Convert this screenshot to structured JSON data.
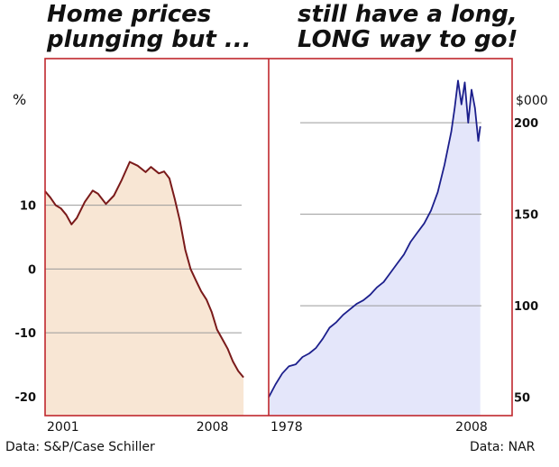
{
  "titles": {
    "left_line1": "Home prices",
    "left_line2": "plunging but ...",
    "right_line1": "still have a long,",
    "right_line2": "LONG way to go!"
  },
  "footer": {
    "left_source": "Data: S&P/Case Schiller",
    "right_source": "Data: NAR"
  },
  "colors": {
    "border": "#c0272d",
    "left_line": "#7a1a1a",
    "left_fill": "#f8e6d4",
    "right_line": "#1c1f8c",
    "right_fill": "#e4e6fa",
    "grid": "#9a9a9a"
  },
  "chart_data": [
    {
      "type": "area",
      "title": "Home prices plunging but ...",
      "source": "Data: S&P/Case Schiller",
      "ylabel": "%",
      "ylim": [
        -23,
        33
      ],
      "xlim": [
        2001.0,
        2008.6
      ],
      "yticks": [
        10,
        0,
        -10,
        -20
      ],
      "ytick_labels": [
        "10",
        "0",
        "-10",
        "-20"
      ],
      "xticks": [
        2001,
        2008
      ],
      "xtick_labels": [
        "2001",
        "2008"
      ],
      "gridlines": [
        10,
        0,
        -10
      ],
      "x": [
        2001.0,
        2001.2,
        2001.4,
        2001.6,
        2001.8,
        2002.0,
        2002.2,
        2002.5,
        2002.8,
        2003.0,
        2003.3,
        2003.6,
        2003.9,
        2004.2,
        2004.5,
        2004.8,
        2005.0,
        2005.3,
        2005.5,
        2005.7,
        2005.9,
        2006.1,
        2006.3,
        2006.5,
        2006.7,
        2006.9,
        2007.1,
        2007.3,
        2007.5,
        2007.7,
        2007.9,
        2008.1,
        2008.3,
        2008.5
      ],
      "values": [
        12.2,
        11.2,
        10.0,
        9.5,
        8.5,
        7.0,
        8.0,
        10.5,
        12.3,
        11.8,
        10.2,
        11.5,
        14.0,
        16.8,
        16.2,
        15.2,
        16.0,
        15.0,
        15.3,
        14.2,
        11.0,
        7.5,
        3.0,
        0.0,
        -1.8,
        -3.5,
        -4.8,
        -6.8,
        -9.5,
        -11.0,
        -12.5,
        -14.5,
        -16.0,
        -17.0
      ]
    },
    {
      "type": "area",
      "title": "still have a long, LONG way to go!",
      "source": "Data: NAR",
      "ylabel": "$000",
      "ylim": [
        40,
        235
      ],
      "xlim": [
        1978,
        2014
      ],
      "yticks": [
        200,
        150,
        100,
        50
      ],
      "ytick_labels": [
        "200",
        "150",
        "100",
        "50"
      ],
      "xticks": [
        1978,
        2008
      ],
      "xtick_labels": [
        "1978",
        "2008"
      ],
      "gridlines": [
        200,
        150,
        100
      ],
      "x": [
        1978.0,
        1979.0,
        1980.0,
        1981.0,
        1982.0,
        1983.0,
        1984.0,
        1985.0,
        1986.0,
        1987.0,
        1988.0,
        1989.0,
        1990.0,
        1991.0,
        1992.0,
        1993.0,
        1994.0,
        1995.0,
        1996.0,
        1997.0,
        1998.0,
        1999.0,
        2000.0,
        2001.0,
        2002.0,
        2003.0,
        2004.0,
        2005.0,
        2005.5,
        2006.0,
        2006.5,
        2007.0,
        2007.5,
        2008.0,
        2008.5,
        2009.0,
        2009.3
      ],
      "values": [
        50,
        57,
        63,
        67,
        68,
        72,
        74,
        77,
        82,
        88,
        91,
        95,
        98,
        101,
        103,
        106,
        110,
        113,
        118,
        123,
        128,
        135,
        140,
        145,
        152,
        162,
        177,
        195,
        208,
        223,
        210,
        222,
        200,
        218,
        208,
        190,
        198
      ]
    }
  ]
}
